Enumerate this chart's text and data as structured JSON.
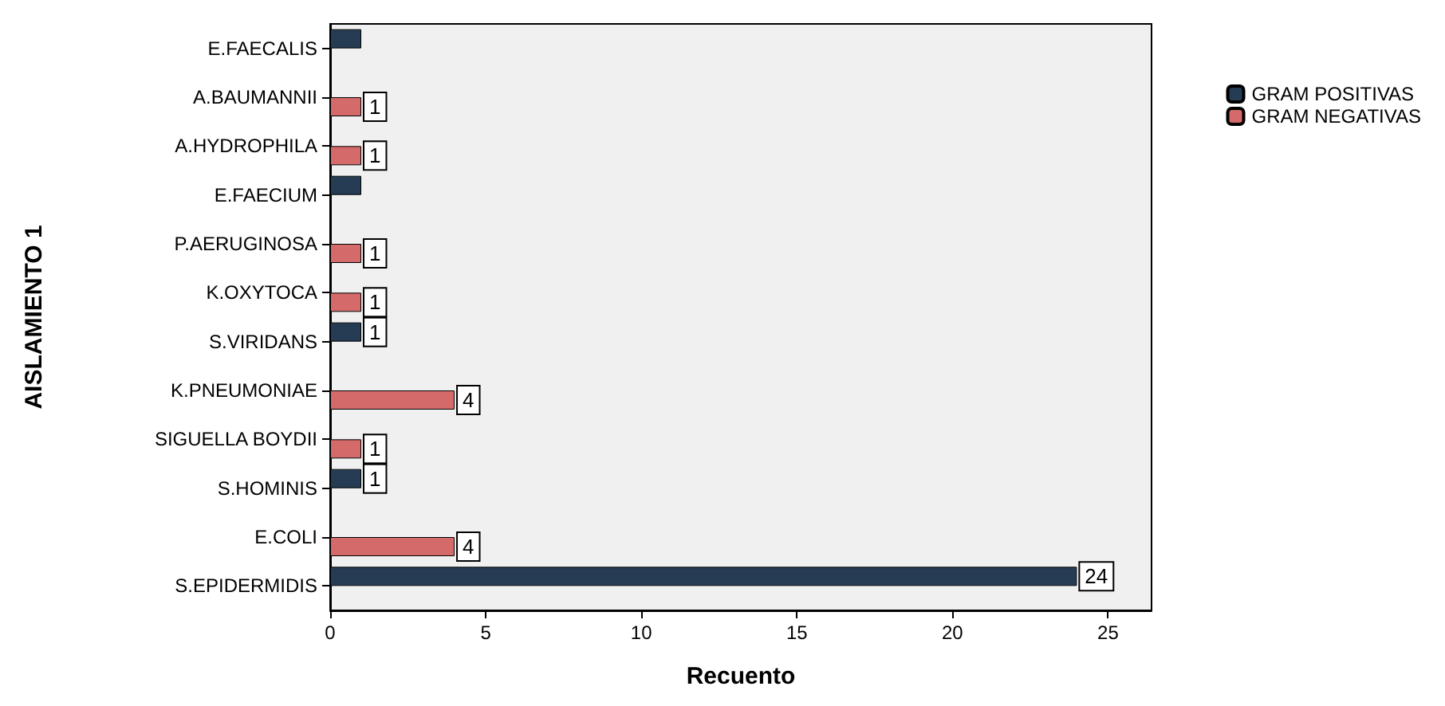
{
  "chart_data": {
    "type": "bar",
    "orientation": "horizontal",
    "xlabel": "Recuento",
    "ylabel": "AISLAMIENTO 1",
    "categories": [
      "E.FAECALIS",
      "A.BAUMANNII",
      "A.HYDROPHILA",
      "E.FAECIUM",
      "P.AERUGINOSA",
      "K.OXYTOCA",
      "S.VIRIDANS",
      "K.PNEUMONIAE",
      "SIGUELLA BOYDII",
      "S.HOMINIS",
      "E.COLI",
      "S.EPIDERMIDIS"
    ],
    "series": [
      {
        "name": "GRAM POSITIVAS",
        "color": "#253c54",
        "values": [
          1,
          null,
          null,
          1,
          null,
          null,
          1,
          null,
          null,
          1,
          null,
          24
        ],
        "value_labels": [
          null,
          null,
          null,
          null,
          null,
          null,
          "1",
          null,
          null,
          "1",
          null,
          "24"
        ]
      },
      {
        "name": "GRAM NEGATIVAS",
        "color": "#d46a6a",
        "values": [
          null,
          1,
          1,
          null,
          1,
          1,
          null,
          4,
          1,
          null,
          4,
          null
        ],
        "value_labels": [
          null,
          "1",
          "1",
          null,
          "1",
          "1",
          null,
          "4",
          "1",
          null,
          "4",
          null
        ]
      }
    ],
    "xlim": [
      0,
      26.4
    ],
    "xticks": [
      0,
      5,
      10,
      15,
      20,
      25
    ],
    "grid": false,
    "legend": "top right"
  }
}
